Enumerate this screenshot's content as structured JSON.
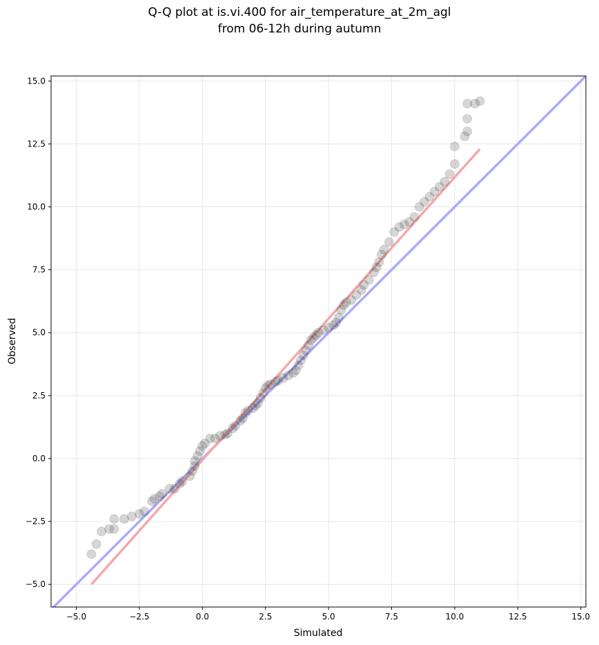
{
  "chart_data": {
    "type": "scatter",
    "title_line1": "Q-Q plot at is.vi.400 for air_temperature_at_2m_agl",
    "title_line2": "from 06-12h during autumn",
    "xlabel": "Simulated",
    "ylabel": "Observed",
    "xlim": [
      -6.0,
      15.2
    ],
    "ylim": [
      -5.9,
      15.2
    ],
    "xticks": [
      -5.0,
      -2.5,
      0.0,
      2.5,
      5.0,
      7.5,
      10.0,
      12.5,
      15.0
    ],
    "xtick_labels": [
      "−5.0",
      "−2.5",
      "0.0",
      "2.5",
      "5.0",
      "7.5",
      "10.0",
      "12.5",
      "15.0"
    ],
    "yticks": [
      -5.0,
      -2.5,
      0.0,
      2.5,
      5.0,
      7.5,
      10.0,
      12.5,
      15.0
    ],
    "ytick_labels": [
      "−5.0",
      "−2.5",
      "0.0",
      "2.5",
      "5.0",
      "7.5",
      "10.0",
      "12.5",
      "15.0"
    ],
    "grid": true,
    "identity_line": {
      "color": "#aaaaff",
      "x": [
        -6.0,
        15.2
      ],
      "y": [
        -6.0,
        15.2
      ]
    },
    "fit_line": {
      "color": "#f4a8a8",
      "x": [
        -4.4,
        11.0
      ],
      "y": [
        -5.0,
        12.3
      ]
    },
    "marker_color": "#333333",
    "points": [
      [
        -4.4,
        -3.8
      ],
      [
        -4.2,
        -3.4
      ],
      [
        -4.0,
        -2.9
      ],
      [
        -3.7,
        -2.8
      ],
      [
        -3.5,
        -2.8
      ],
      [
        -3.5,
        -2.4
      ],
      [
        -3.1,
        -2.4
      ],
      [
        -2.8,
        -2.3
      ],
      [
        -2.5,
        -2.2
      ],
      [
        -2.3,
        -2.1
      ],
      [
        -2.0,
        -1.7
      ],
      [
        -1.9,
        -1.6
      ],
      [
        -1.7,
        -1.5
      ],
      [
        -1.6,
        -1.4
      ],
      [
        -1.3,
        -1.2
      ],
      [
        -1.1,
        -1.2
      ],
      [
        -0.9,
        -1.0
      ],
      [
        -0.8,
        -0.9
      ],
      [
        -0.5,
        -0.7
      ],
      [
        -0.4,
        -0.5
      ],
      [
        -0.3,
        -0.3
      ],
      [
        -0.3,
        -0.1
      ],
      [
        -0.2,
        0.1
      ],
      [
        -0.1,
        0.3
      ],
      [
        0.0,
        0.5
      ],
      [
        0.1,
        0.6
      ],
      [
        0.3,
        0.8
      ],
      [
        0.5,
        0.8
      ],
      [
        0.7,
        0.9
      ],
      [
        0.9,
        0.95
      ],
      [
        1.0,
        1.0
      ],
      [
        1.2,
        1.2
      ],
      [
        1.3,
        1.3
      ],
      [
        1.5,
        1.5
      ],
      [
        1.6,
        1.6
      ],
      [
        1.7,
        1.8
      ],
      [
        1.8,
        1.9
      ],
      [
        2.0,
        2.0
      ],
      [
        2.1,
        2.1
      ],
      [
        2.2,
        2.2
      ],
      [
        2.3,
        2.4
      ],
      [
        2.4,
        2.6
      ],
      [
        2.5,
        2.8
      ],
      [
        2.6,
        2.9
      ],
      [
        2.7,
        2.95
      ],
      [
        2.9,
        3.05
      ],
      [
        3.0,
        3.1
      ],
      [
        3.2,
        3.2
      ],
      [
        3.4,
        3.3
      ],
      [
        3.6,
        3.4
      ],
      [
        3.7,
        3.5
      ],
      [
        3.8,
        3.7
      ],
      [
        3.9,
        3.9
      ],
      [
        4.0,
        4.1
      ],
      [
        4.1,
        4.3
      ],
      [
        4.2,
        4.5
      ],
      [
        4.3,
        4.7
      ],
      [
        4.4,
        4.8
      ],
      [
        4.5,
        4.9
      ],
      [
        4.6,
        5.0
      ],
      [
        4.8,
        5.1
      ],
      [
        5.0,
        5.2
      ],
      [
        5.2,
        5.3
      ],
      [
        5.3,
        5.4
      ],
      [
        5.4,
        5.6
      ],
      [
        5.5,
        5.9
      ],
      [
        5.6,
        6.1
      ],
      [
        5.7,
        6.2
      ],
      [
        5.9,
        6.3
      ],
      [
        6.1,
        6.5
      ],
      [
        6.3,
        6.7
      ],
      [
        6.4,
        6.9
      ],
      [
        6.6,
        7.1
      ],
      [
        6.8,
        7.4
      ],
      [
        6.9,
        7.6
      ],
      [
        7.0,
        7.8
      ],
      [
        7.1,
        8.1
      ],
      [
        7.2,
        8.3
      ],
      [
        7.4,
        8.6
      ],
      [
        7.6,
        9.0
      ],
      [
        7.8,
        9.2
      ],
      [
        8.0,
        9.3
      ],
      [
        8.2,
        9.4
      ],
      [
        8.4,
        9.6
      ],
      [
        8.6,
        10.0
      ],
      [
        8.8,
        10.2
      ],
      [
        9.0,
        10.4
      ],
      [
        9.2,
        10.6
      ],
      [
        9.4,
        10.8
      ],
      [
        9.6,
        11.0
      ],
      [
        9.8,
        11.3
      ],
      [
        10.0,
        11.7
      ],
      [
        10.0,
        12.4
      ],
      [
        10.4,
        12.8
      ],
      [
        10.5,
        13.0
      ],
      [
        10.5,
        13.5
      ],
      [
        10.5,
        14.1
      ],
      [
        10.8,
        14.1
      ],
      [
        11.0,
        14.2
      ]
    ]
  }
}
